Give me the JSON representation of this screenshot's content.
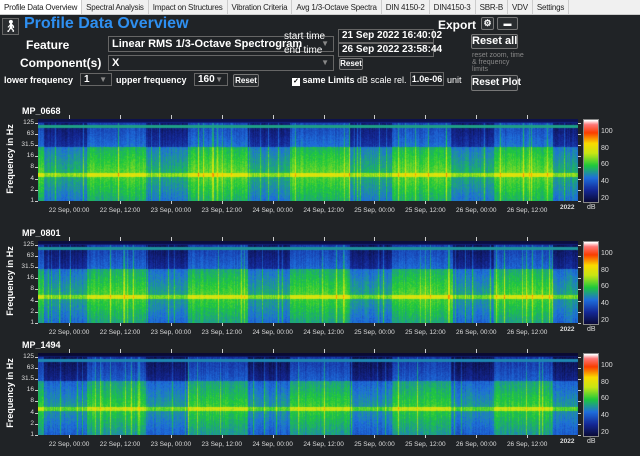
{
  "tabs": [
    "Profile Data Overview",
    "Spectral Analysis",
    "Impact on Structures",
    "Vibration Criteria",
    "Avg 1/3-Octave Spectra",
    "DIN 4150-2",
    "DIN4150-3",
    "SBR-B",
    "VDV",
    "Settings"
  ],
  "active_tab": 0,
  "header": {
    "title": "Profile Data Overview",
    "logo_icon": "person-walking-icon",
    "export_label": "Export"
  },
  "controls": {
    "feature_label": "Feature",
    "feature_value": "Linear RMS 1/3-Octave Spectrogram",
    "components_label": "Component(s)",
    "components_value": "X",
    "lower_freq_label": "lower frequency",
    "lower_freq_value": "1",
    "upper_freq_label": "upper frequency",
    "upper_freq_value": "160",
    "freq_reset": "Reset",
    "start_label": "start time",
    "start_value": "21 Sep 2022 16:40:02",
    "end_label": "end time",
    "end_value": "26 Sep 2022 23:58:44",
    "time_reset": "Reset",
    "same_limits_label": "same Limits",
    "same_limits_checked": true,
    "db_label": "dB scale rel.",
    "db_value": "1.0e-06",
    "db_unit": "unit",
    "reset_all": "Reset all",
    "reset_note": "reset zoom, time & frequency limits",
    "reset_plot": "Reset Plot"
  },
  "chart_data": [
    {
      "type": "heatmap",
      "title": "MP_0668",
      "ylabel": "Frequency in Hz",
      "yscale": "log",
      "yticks": [
        "1",
        "2",
        "4",
        "8",
        "16",
        "31.5",
        "63",
        "125"
      ],
      "ylim": [
        1,
        160
      ],
      "xlim": [
        "2022-09-21 16:40:02",
        "2022-09-26 23:58:44"
      ],
      "xticks": [
        "22 Sep, 00:00",
        "22 Sep, 12:00",
        "23 Sep, 00:00",
        "23 Sep, 12:00",
        "24 Sep, 00:00",
        "24 Sep, 12:00",
        "25 Sep, 00:00",
        "25 Sep, 12:00",
        "26 Sep, 00:00",
        "26 Sep, 12:00"
      ],
      "xyear": "2022",
      "colorbar": {
        "ticks": [
          "20",
          "40",
          "60",
          "80",
          "100"
        ],
        "range": [
          18,
          115
        ],
        "label": "dB"
      }
    },
    {
      "type": "heatmap",
      "title": "MP_0801",
      "ylabel": "Frequency in Hz",
      "yscale": "log",
      "yticks": [
        "1",
        "2",
        "4",
        "8",
        "16",
        "31.5",
        "63",
        "125"
      ],
      "ylim": [
        1,
        160
      ],
      "xlim": [
        "2022-09-21 16:40:02",
        "2022-09-26 23:58:44"
      ],
      "xticks": [
        "22 Sep, 00:00",
        "22 Sep, 12:00",
        "23 Sep, 00:00",
        "23 Sep, 12:00",
        "24 Sep, 00:00",
        "24 Sep, 12:00",
        "25 Sep, 00:00",
        "25 Sep, 12:00",
        "26 Sep, 00:00",
        "26 Sep, 12:00"
      ],
      "xyear": "2022",
      "colorbar": {
        "ticks": [
          "20",
          "40",
          "60",
          "80",
          "100"
        ],
        "range": [
          18,
          115
        ],
        "label": "dB"
      }
    },
    {
      "type": "heatmap",
      "title": "MP_1494",
      "ylabel": "Frequency in Hz",
      "yscale": "log",
      "yticks": [
        "1",
        "2",
        "4",
        "8",
        "16",
        "31.5",
        "63",
        "125"
      ],
      "ylim": [
        1,
        160
      ],
      "xlim": [
        "2022-09-21 16:40:02",
        "2022-09-26 23:58:44"
      ],
      "xticks": [
        "22 Sep, 00:00",
        "22 Sep, 12:00",
        "23 Sep, 00:00",
        "23 Sep, 12:00",
        "24 Sep, 00:00",
        "24 Sep, 12:00",
        "25 Sep, 00:00",
        "25 Sep, 12:00",
        "26 Sep, 00:00",
        "26 Sep, 12:00"
      ],
      "xyear": "2022",
      "colorbar": {
        "ticks": [
          "20",
          "40",
          "60",
          "80",
          "100"
        ],
        "range": [
          18,
          115
        ],
        "label": "dB"
      }
    }
  ]
}
